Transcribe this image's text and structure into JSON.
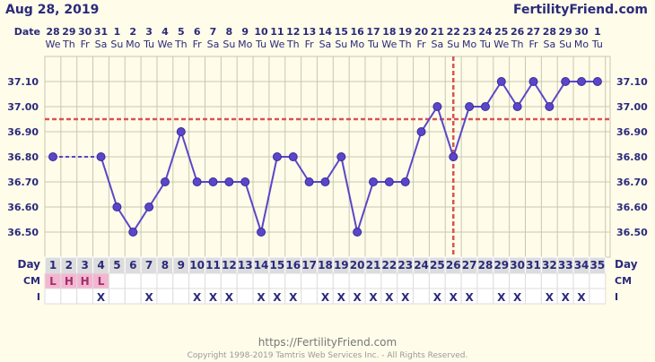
{
  "header": {
    "date": "Aug 28, 2019",
    "brand": "FertilityFriend.com"
  },
  "row_labels": {
    "date": "Date",
    "day": "Day",
    "cm": "CM",
    "intercourse": "I"
  },
  "footer": {
    "url": "https://FertilityFriend.com",
    "copyright": "Copyright 1998-2019 Tamtris Web Services Inc. - All Rights Reserved."
  },
  "colors": {
    "background": "#fffcea",
    "grid": "#c9c8ad",
    "line": "#5a46c8",
    "coverline": "#d9534f",
    "pink": "#f3b6d0",
    "day_box": "#dcdcdc"
  },
  "chart_data": {
    "type": "line",
    "title": "",
    "xlabel": "Day",
    "ylabel": "",
    "ylim": [
      36.4,
      37.2
    ],
    "y_ticks": [
      "37.10",
      "37.00",
      "36.90",
      "36.80",
      "36.70",
      "36.60",
      "36.50"
    ],
    "cycle_days": [
      1,
      2,
      3,
      4,
      5,
      6,
      7,
      8,
      9,
      10,
      11,
      12,
      13,
      14,
      15,
      16,
      17,
      18,
      19,
      20,
      21,
      22,
      23,
      24,
      25,
      26,
      27,
      28,
      29,
      30,
      31,
      32,
      33,
      34,
      35
    ],
    "dates": [
      "28",
      "29",
      "30",
      "31",
      "1",
      "2",
      "3",
      "4",
      "5",
      "6",
      "7",
      "8",
      "9",
      "10",
      "11",
      "12",
      "13",
      "14",
      "15",
      "16",
      "17",
      "18",
      "19",
      "20",
      "21",
      "22",
      "23",
      "24",
      "25",
      "26",
      "27",
      "28",
      "29",
      "30",
      "1"
    ],
    "weekdays": [
      "We",
      "Th",
      "Fr",
      "Sa",
      "Su",
      "Mo",
      "Tu",
      "We",
      "Th",
      "Fr",
      "Sa",
      "Su",
      "Mo",
      "Tu",
      "We",
      "Th",
      "Fr",
      "Sa",
      "Su",
      "Mo",
      "Tu",
      "We",
      "Th",
      "Fr",
      "Sa",
      "Su",
      "Mo",
      "Tu",
      "We",
      "Th",
      "Fr",
      "Sa",
      "Su",
      "Mo",
      "Tu"
    ],
    "temperatures": [
      36.8,
      null,
      null,
      36.8,
      36.6,
      36.5,
      36.6,
      36.7,
      36.9,
      36.7,
      36.7,
      36.7,
      36.7,
      36.5,
      36.8,
      36.8,
      36.7,
      36.7,
      36.8,
      36.5,
      36.7,
      36.7,
      36.7,
      36.9,
      37.0,
      36.8,
      37.0,
      37.0,
      37.1,
      37.0,
      37.1,
      37.0,
      37.1,
      37.1,
      37.1
    ],
    "coverline": 36.95,
    "ovulation_day": 26,
    "cervical_mucus": [
      "L",
      "H",
      "H",
      "L",
      "",
      "",
      "",
      "",
      "",
      "",
      "",
      "",
      "",
      "",
      "",
      "",
      "",
      "",
      "",
      "",
      "",
      "",
      "",
      "",
      "",
      "",
      "",
      "",
      "",
      "",
      "",
      "",
      "",
      "",
      ""
    ],
    "intercourse": [
      "",
      "",
      "",
      "X",
      "",
      "",
      "X",
      "",
      "",
      "X",
      "X",
      "X",
      "",
      "X",
      "X",
      "X",
      "",
      "X",
      "X",
      "X",
      "X",
      "X",
      "X",
      "",
      "X",
      "X",
      "X",
      "",
      "X",
      "X",
      "",
      "X",
      "X",
      "X",
      ""
    ]
  }
}
